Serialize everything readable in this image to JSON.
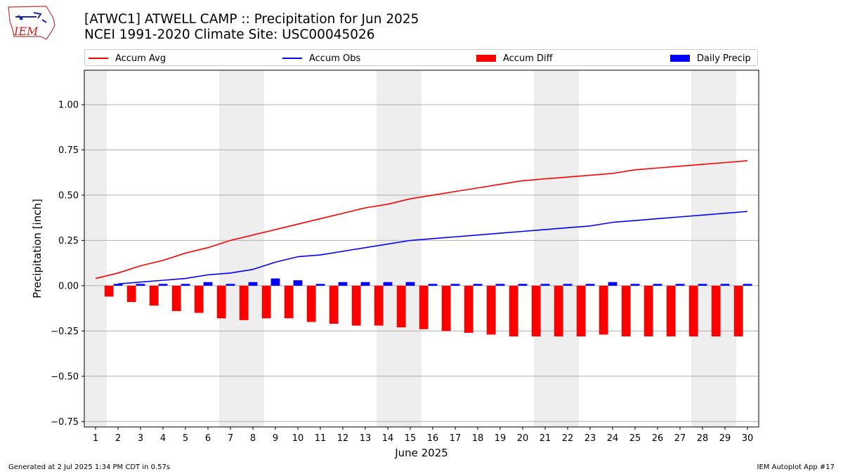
{
  "header": {
    "title_line1": "[ATWC1] ATWELL CAMP :: Precipitation for Jun 2025",
    "title_line2": "NCEI 1991-2020 Climate Site: USC00045026",
    "logo_text": "IEM"
  },
  "footer": {
    "left": "Generated at 2 Jul 2025 1:34 PM CDT in 0.57s",
    "right": "IEM Autoplot App #17"
  },
  "colors": {
    "avg": "#ff0000",
    "obs": "#0000ff",
    "diff": "#ff0000",
    "daily": "#0000ff",
    "weekend_band": "#eeeeee",
    "grid": "#b0b0b0"
  },
  "chart_data": {
    "type": "bar",
    "xlabel": "June 2025",
    "ylabel": "Precipitation [inch]",
    "ylim": [
      -0.78,
      1.19
    ],
    "yticks": [
      -0.75,
      -0.5,
      -0.25,
      0.0,
      0.25,
      0.5,
      0.75,
      1.0
    ],
    "ytick_labels": [
      "−0.75",
      "−0.50",
      "−0.25",
      "0.00",
      "0.25",
      "0.50",
      "0.75",
      "1.00"
    ],
    "grid": "horizontal",
    "legend_placement": "top",
    "x": [
      1,
      2,
      3,
      4,
      5,
      6,
      7,
      8,
      9,
      10,
      11,
      12,
      13,
      14,
      15,
      16,
      17,
      18,
      19,
      20,
      21,
      22,
      23,
      24,
      25,
      26,
      27,
      28,
      29,
      30
    ],
    "weekend_bands": [
      [
        0.5,
        1.5
      ],
      [
        6.5,
        8.5
      ],
      [
        13.5,
        15.5
      ],
      [
        20.5,
        22.5
      ],
      [
        27.5,
        29.5
      ]
    ],
    "series": [
      {
        "name": "Accum Avg",
        "kind": "line",
        "x": [
          1,
          2,
          3,
          4,
          5,
          6,
          7,
          8,
          9,
          10,
          11,
          12,
          13,
          14,
          15,
          16,
          17,
          18,
          19,
          20,
          21,
          22,
          23,
          24,
          25,
          26,
          27,
          28,
          29,
          30
        ],
        "values": [
          0.04,
          0.07,
          0.11,
          0.14,
          0.18,
          0.21,
          0.25,
          0.28,
          0.31,
          0.34,
          0.37,
          0.4,
          0.43,
          0.45,
          0.48,
          0.5,
          0.52,
          0.54,
          0.56,
          0.58,
          0.59,
          0.6,
          0.61,
          0.62,
          0.64,
          0.65,
          0.66,
          0.67,
          0.68,
          0.69
        ]
      },
      {
        "name": "Accum Obs",
        "kind": "line",
        "x": [
          2,
          3,
          4,
          5,
          6,
          7,
          8,
          9,
          10,
          11,
          12,
          13,
          14,
          15,
          16,
          17,
          18,
          19,
          20,
          21,
          22,
          23,
          24,
          25,
          26,
          27,
          28,
          29,
          30
        ],
        "values": [
          0.01,
          0.02,
          0.03,
          0.04,
          0.06,
          0.07,
          0.09,
          0.13,
          0.16,
          0.17,
          0.19,
          0.21,
          0.23,
          0.25,
          0.26,
          0.27,
          0.28,
          0.29,
          0.3,
          0.31,
          0.32,
          0.33,
          0.35,
          0.36,
          0.37,
          0.38,
          0.39,
          0.4,
          0.41
        ]
      },
      {
        "name": "Accum Diff",
        "kind": "bar",
        "x": [
          2,
          3,
          4,
          5,
          6,
          7,
          8,
          9,
          10,
          11,
          12,
          13,
          14,
          15,
          16,
          17,
          18,
          19,
          20,
          21,
          22,
          23,
          24,
          25,
          26,
          27,
          28,
          29,
          30
        ],
        "values": [
          -0.06,
          -0.09,
          -0.11,
          -0.14,
          -0.15,
          -0.18,
          -0.19,
          -0.18,
          -0.18,
          -0.2,
          -0.21,
          -0.22,
          -0.22,
          -0.23,
          -0.24,
          -0.25,
          -0.26,
          -0.27,
          -0.28,
          -0.28,
          -0.28,
          -0.28,
          -0.27,
          -0.28,
          -0.28,
          -0.28,
          -0.28,
          -0.28,
          -0.28
        ]
      },
      {
        "name": "Daily Precip",
        "kind": "bar",
        "x": [
          2,
          3,
          4,
          5,
          6,
          7,
          8,
          9,
          10,
          11,
          12,
          13,
          14,
          15,
          16,
          17,
          18,
          19,
          20,
          21,
          22,
          23,
          24,
          25,
          26,
          27,
          28,
          29,
          30
        ],
        "values": [
          0.01,
          0.01,
          0.01,
          0.01,
          0.02,
          0.01,
          0.02,
          0.04,
          0.03,
          0.01,
          0.02,
          0.02,
          0.02,
          0.02,
          0.01,
          0.01,
          0.01,
          0.01,
          0.01,
          0.01,
          0.01,
          0.01,
          0.02,
          0.01,
          0.01,
          0.01,
          0.01,
          0.01,
          0.01
        ]
      }
    ]
  }
}
